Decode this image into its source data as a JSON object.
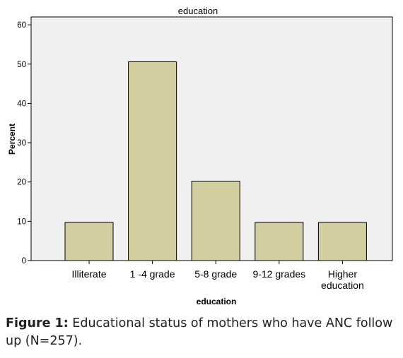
{
  "chart_data": {
    "type": "bar",
    "title": "education",
    "xlabel": "education",
    "ylabel": "Percent",
    "categories": [
      "Illiterate",
      "1 -4 grade",
      "5-8 grade",
      "9-12 grades",
      "Higher education"
    ],
    "values": [
      9.7,
      50.6,
      20.2,
      9.7,
      9.7
    ],
    "ylim": [
      0,
      62
    ],
    "yticks": [
      0,
      10,
      20,
      30,
      40,
      50,
      60
    ],
    "grid": false,
    "colors": {
      "bar": "#D3CE9F",
      "plot_bg": "#F0F0F0",
      "bar_edge": "#000000"
    }
  },
  "caption": {
    "lead": "Figure 1:",
    "text": "Educational status of mothers who have ANC follow up (N=257)."
  }
}
